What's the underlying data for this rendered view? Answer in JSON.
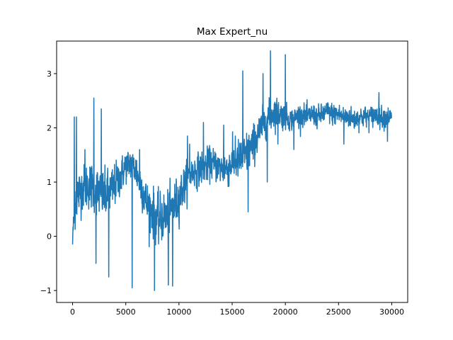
{
  "chart_data": {
    "type": "line",
    "title": "Max Expert_nu",
    "xlabel": "",
    "ylabel": "",
    "xlim": [
      -1500,
      31500
    ],
    "ylim": [
      -1.22,
      3.6
    ],
    "x_ticks": [
      0,
      5000,
      10000,
      15000,
      20000,
      25000,
      30000
    ],
    "x_tick_labels": [
      "0",
      "5000",
      "10000",
      "15000",
      "20000",
      "25000",
      "30000"
    ],
    "y_ticks": [
      -1,
      0,
      1,
      2,
      3
    ],
    "y_tick_labels": [
      "−1",
      "0",
      "1",
      "2",
      "3"
    ],
    "grid": false,
    "legend": "none",
    "series": [
      {
        "color": "#1f77b4",
        "x": [
          0,
          300,
          600,
          1000,
          1500,
          2000,
          2500,
          3000,
          3500,
          4000,
          4500,
          5000,
          5500,
          6000,
          6500,
          7000,
          7500,
          8000,
          8500,
          9000,
          9500,
          10000,
          10500,
          11000,
          11500,
          12000,
          12500,
          13000,
          13500,
          14000,
          14500,
          15000,
          15500,
          16000,
          16500,
          17000,
          17500,
          18000,
          18500,
          19000,
          19500,
          20000,
          20500,
          21000,
          21500,
          22000,
          22500,
          23000,
          23500,
          24000,
          24500,
          25000,
          25500,
          26000,
          26500,
          27000,
          27500,
          28000,
          28500,
          29000,
          29500,
          30000
        ],
        "values": [
          0.0,
          0.75,
          0.8,
          0.9,
          0.95,
          0.9,
          0.8,
          0.75,
          0.8,
          0.95,
          1.1,
          1.3,
          1.35,
          1.2,
          0.9,
          0.6,
          0.45,
          0.3,
          0.35,
          0.4,
          0.55,
          0.7,
          0.95,
          1.15,
          1.2,
          1.25,
          1.3,
          1.35,
          1.3,
          1.25,
          1.25,
          1.35,
          1.4,
          1.45,
          1.55,
          1.7,
          1.9,
          2.1,
          2.2,
          2.3,
          2.25,
          2.2,
          2.15,
          2.2,
          2.25,
          2.2,
          2.25,
          2.2,
          2.25,
          2.3,
          2.25,
          2.25,
          2.2,
          2.2,
          2.15,
          2.2,
          2.2,
          2.2,
          2.25,
          2.2,
          2.2,
          2.2
        ],
        "noise": [
          0.1,
          0.55,
          0.45,
          0.4,
          0.45,
          0.45,
          0.45,
          0.45,
          0.45,
          0.4,
          0.35,
          0.3,
          0.3,
          0.35,
          0.4,
          0.4,
          0.45,
          0.45,
          0.45,
          0.45,
          0.45,
          0.4,
          0.35,
          0.3,
          0.3,
          0.3,
          0.3,
          0.3,
          0.3,
          0.3,
          0.35,
          0.35,
          0.35,
          0.4,
          0.4,
          0.35,
          0.35,
          0.3,
          0.3,
          0.3,
          0.25,
          0.25,
          0.2,
          0.2,
          0.2,
          0.2,
          0.2,
          0.2,
          0.2,
          0.2,
          0.2,
          0.2,
          0.2,
          0.2,
          0.2,
          0.2,
          0.2,
          0.2,
          0.2,
          0.2,
          0.2,
          0.15
        ],
        "spikes": [
          [
            0,
            -0.15
          ],
          [
            150,
            2.2
          ],
          [
            350,
            2.2
          ],
          [
            1150,
            1.6
          ],
          [
            2000,
            2.55
          ],
          [
            2200,
            -0.5
          ],
          [
            2700,
            2.35
          ],
          [
            3400,
            -0.75
          ],
          [
            5600,
            -0.95
          ],
          [
            6300,
            1.6
          ],
          [
            7700,
            -1.0
          ],
          [
            9000,
            -0.9
          ],
          [
            9400,
            -0.92
          ],
          [
            10800,
            1.85
          ],
          [
            11000,
            1.7
          ],
          [
            12300,
            2.1
          ],
          [
            14200,
            2.05
          ],
          [
            15300,
            1.85
          ],
          [
            16000,
            3.05
          ],
          [
            16500,
            0.45
          ],
          [
            17900,
            3.0
          ],
          [
            18300,
            1.0
          ],
          [
            18600,
            3.42
          ],
          [
            19300,
            1.7
          ],
          [
            20000,
            3.35
          ],
          [
            20800,
            1.6
          ],
          [
            25500,
            1.7
          ],
          [
            28800,
            2.65
          ],
          [
            29600,
            1.75
          ]
        ]
      }
    ]
  }
}
